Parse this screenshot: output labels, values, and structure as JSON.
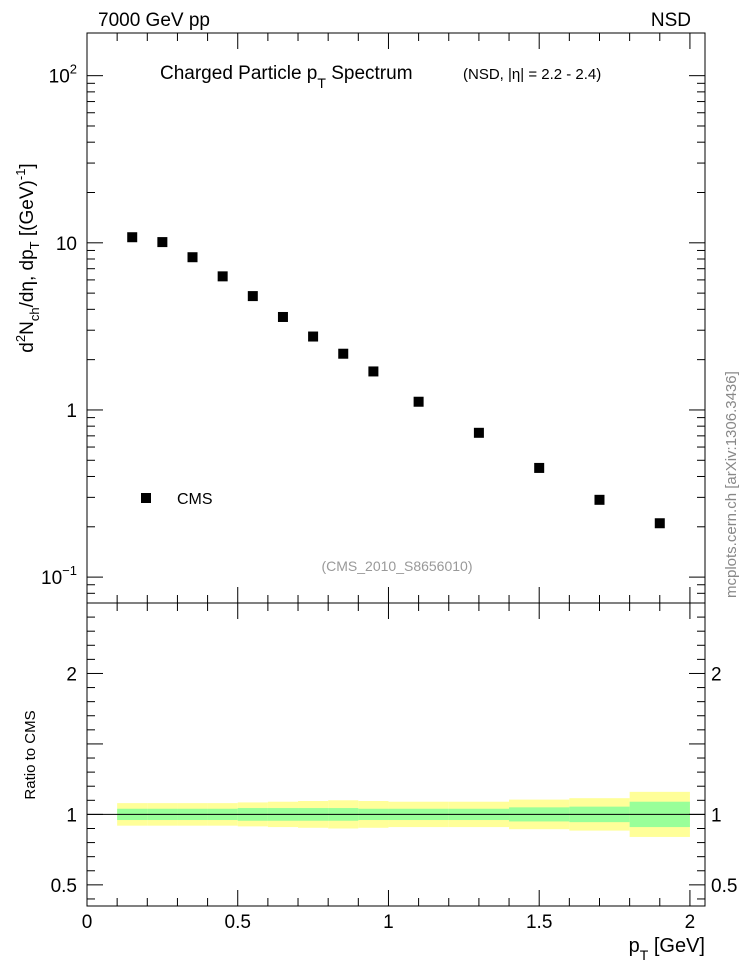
{
  "header": {
    "left": "7000 GeV pp",
    "right": "NSD"
  },
  "side_label": "mcplots.cern.ch [arXiv:1306.3436]",
  "chart_data": [
    {
      "type": "scatter",
      "title_main": "Charged Particle p",
      "title_sub": "T",
      "title_rest": " Spectrum",
      "title_extra_pre": "(NSD, |",
      "title_extra_eta": "η",
      "title_extra_post": "| = 2.2 - 2.4)",
      "ylabel": "d²N_ch/dη, dp_T [(GeV)^-1]",
      "ylabel_parts": {
        "d": "d",
        "sup2": "2",
        "N": "N",
        "ch": "ch",
        "mid": "/dη, dp",
        "T": "T",
        "tail": " [(GeV)",
        "sup": "-1",
        "close": "]"
      },
      "yscale": "log",
      "ylim": [
        0.07,
        180
      ],
      "xlim": [
        0,
        2.05
      ],
      "yticks": [
        {
          "value": 100,
          "base": "10",
          "exp": "2"
        },
        {
          "value": 10,
          "base": "10",
          "exp": ""
        },
        {
          "value": 1,
          "base": "1",
          "exp": ""
        },
        {
          "value": 0.1,
          "base": "10",
          "exp": "−1"
        }
      ],
      "legend": {
        "label": "CMS",
        "position": "lower-left"
      },
      "watermark": "(CMS_2010_S8656010)",
      "series": [
        {
          "name": "CMS",
          "marker": "square",
          "x": [
            0.15,
            0.25,
            0.35,
            0.45,
            0.55,
            0.65,
            0.75,
            0.85,
            0.95,
            1.1,
            1.3,
            1.5,
            1.7,
            1.9
          ],
          "y": [
            10.8,
            10.1,
            8.2,
            6.3,
            4.8,
            3.6,
            2.75,
            2.17,
            1.7,
            1.12,
            0.73,
            0.45,
            0.29,
            0.21
          ]
        }
      ]
    },
    {
      "type": "area",
      "ylabel": "Ratio to CMS",
      "xlabel_main": "p",
      "xlabel_sub": "T",
      "xlabel_unit": " [GeV]",
      "xlim": [
        0,
        2.05
      ],
      "ylim": [
        0.35,
        2.5
      ],
      "xticks": [
        {
          "value": 0,
          "label": "0"
        },
        {
          "value": 0.5,
          "label": "0.5"
        },
        {
          "value": 1,
          "label": "1"
        },
        {
          "value": 1.5,
          "label": "1.5"
        },
        {
          "value": 2,
          "label": "2"
        }
      ],
      "yticks": [
        {
          "value": 0.5,
          "label": "0.5"
        },
        {
          "value": 1,
          "label": "1"
        },
        {
          "value": 2,
          "label": "2"
        }
      ],
      "reference_line": 1,
      "band_colors": {
        "stat": "#99ff99",
        "total": "#ffff99"
      },
      "bands": [
        {
          "x0": 0.1,
          "x1": 0.2,
          "stat": [
            0.96,
            1.04
          ],
          "total": [
            0.92,
            1.08
          ]
        },
        {
          "x0": 0.2,
          "x1": 0.3,
          "stat": [
            0.96,
            1.04
          ],
          "total": [
            0.92,
            1.08
          ]
        },
        {
          "x0": 0.3,
          "x1": 0.4,
          "stat": [
            0.96,
            1.04
          ],
          "total": [
            0.92,
            1.08
          ]
        },
        {
          "x0": 0.4,
          "x1": 0.5,
          "stat": [
            0.96,
            1.04
          ],
          "total": [
            0.92,
            1.08
          ]
        },
        {
          "x0": 0.5,
          "x1": 0.6,
          "stat": [
            0.955,
            1.045
          ],
          "total": [
            0.915,
            1.085
          ]
        },
        {
          "x0": 0.6,
          "x1": 0.7,
          "stat": [
            0.955,
            1.045
          ],
          "total": [
            0.91,
            1.09
          ]
        },
        {
          "x0": 0.7,
          "x1": 0.8,
          "stat": [
            0.955,
            1.045
          ],
          "total": [
            0.905,
            1.095
          ]
        },
        {
          "x0": 0.8,
          "x1": 0.9,
          "stat": [
            0.955,
            1.045
          ],
          "total": [
            0.9,
            1.1
          ]
        },
        {
          "x0": 0.9,
          "x1": 1.0,
          "stat": [
            0.96,
            1.04
          ],
          "total": [
            0.905,
            1.095
          ]
        },
        {
          "x0": 1.0,
          "x1": 1.2,
          "stat": [
            0.96,
            1.04
          ],
          "total": [
            0.91,
            1.09
          ]
        },
        {
          "x0": 1.2,
          "x1": 1.4,
          "stat": [
            0.96,
            1.04
          ],
          "total": [
            0.91,
            1.09
          ]
        },
        {
          "x0": 1.4,
          "x1": 1.6,
          "stat": [
            0.95,
            1.05
          ],
          "total": [
            0.895,
            1.105
          ]
        },
        {
          "x0": 1.6,
          "x1": 1.8,
          "stat": [
            0.945,
            1.055
          ],
          "total": [
            0.885,
            1.115
          ]
        },
        {
          "x0": 1.8,
          "x1": 2.0,
          "stat": [
            0.91,
            1.09
          ],
          "total": [
            0.84,
            1.16
          ]
        }
      ]
    }
  ]
}
